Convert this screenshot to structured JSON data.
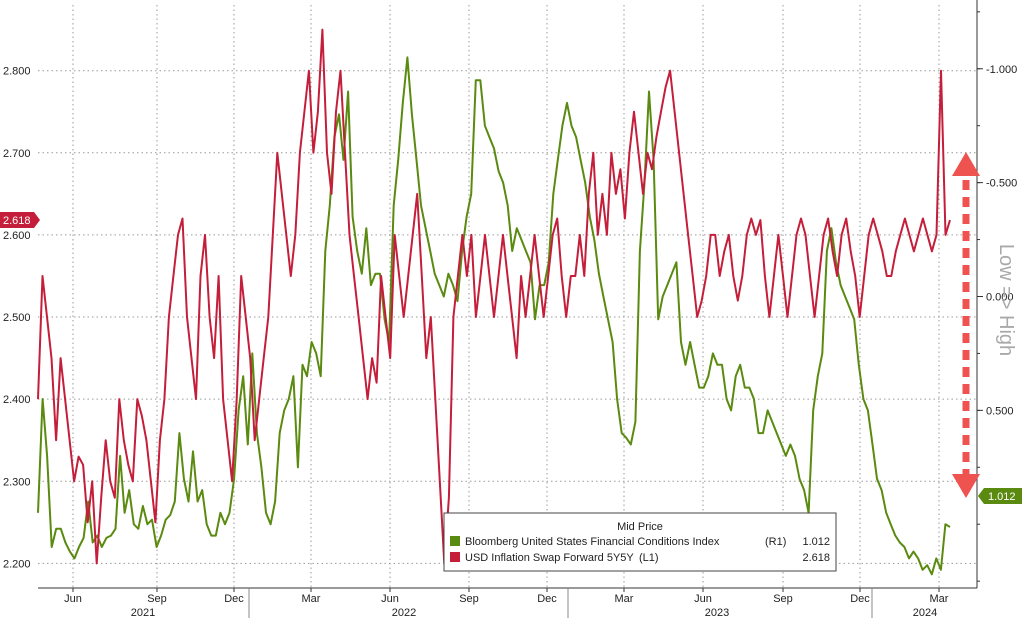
{
  "chart_data": {
    "type": "line",
    "legend_title": "Mid Price",
    "legend_position": "bottom-right",
    "x_month_labels": [
      "Jun",
      "Sep",
      "Dec",
      "Mar",
      "Jun",
      "Sep",
      "Dec",
      "Mar",
      "Jun",
      "Sep",
      "Dec",
      "Mar"
    ],
    "x_year_labels": [
      "2021",
      "2022",
      "2023",
      "2024"
    ],
    "left_axis": {
      "ticks": [
        "2.200",
        "2.300",
        "2.400",
        "2.500",
        "2.600",
        "2.700",
        "2.800"
      ],
      "ylim": [
        2.17,
        2.88
      ]
    },
    "right_axis": {
      "ticks": [
        "-1.000",
        "-0.500",
        "0.000",
        "0.500"
      ],
      "ylim": [
        1.28,
        -1.28
      ],
      "inverted": true,
      "label": "Low => High"
    },
    "series": [
      {
        "name": "Bloomberg United States Financial Conditions Index",
        "axis": "R1",
        "color": "#5a8a0f",
        "last_value": "1.012",
        "values": [
          0.95,
          0.45,
          0.7,
          1.1,
          1.02,
          1.02,
          1.08,
          1.12,
          1.15,
          1.1,
          1.06,
          0.9,
          1.08,
          1.05,
          1.1,
          1.06,
          1.05,
          1.02,
          0.7,
          0.95,
          0.85,
          1.0,
          1.02,
          0.92,
          1.0,
          0.98,
          1.1,
          1.05,
          0.98,
          0.96,
          0.9,
          0.6,
          0.8,
          0.9,
          0.68,
          0.9,
          0.85,
          1.0,
          1.05,
          1.05,
          0.95,
          1.0,
          0.95,
          0.8,
          0.5,
          0.35,
          0.65,
          0.25,
          0.6,
          0.75,
          0.95,
          1.0,
          0.9,
          0.6,
          0.5,
          0.45,
          0.35,
          0.75,
          0.3,
          0.35,
          0.2,
          0.25,
          0.35,
          -0.2,
          -0.4,
          -0.7,
          -0.8,
          -0.6,
          -0.9,
          -0.35,
          -0.2,
          -0.1,
          -0.3,
          -0.05,
          -0.1,
          -0.1,
          0.1,
          0.2,
          -0.4,
          -0.6,
          -0.85,
          -1.05,
          -0.8,
          -0.6,
          -0.4,
          -0.3,
          -0.2,
          -0.1,
          -0.05,
          0.0,
          -0.1,
          -0.05,
          0.02,
          -0.2,
          -0.35,
          -0.45,
          -0.95,
          -0.95,
          -0.75,
          -0.7,
          -0.65,
          -0.55,
          -0.5,
          -0.4,
          -0.2,
          -0.3,
          -0.25,
          -0.2,
          -0.15,
          0.1,
          -0.05,
          -0.05,
          -0.15,
          -0.45,
          -0.6,
          -0.75,
          -0.85,
          -0.75,
          -0.7,
          -0.6,
          -0.5,
          -0.35,
          -0.25,
          -0.1,
          0.0,
          0.1,
          0.2,
          0.45,
          0.6,
          0.62,
          0.65,
          0.55,
          -0.2,
          -0.5,
          -0.9,
          -0.6,
          0.1,
          0.0,
          -0.05,
          -0.1,
          -0.15,
          0.2,
          0.3,
          0.2,
          0.3,
          0.4,
          0.4,
          0.35,
          0.25,
          0.3,
          0.3,
          0.45,
          0.5,
          0.35,
          0.3,
          0.4,
          0.4,
          0.45,
          0.6,
          0.6,
          0.5,
          0.55,
          0.6,
          0.65,
          0.7,
          0.65,
          0.7,
          0.8,
          0.85,
          0.95,
          0.5,
          0.35,
          0.25,
          -0.2,
          -0.3,
          -0.15,
          -0.05,
          0.0,
          0.05,
          0.1,
          0.3,
          0.45,
          0.5,
          0.65,
          0.8,
          0.85,
          0.95,
          1.0,
          1.05,
          1.08,
          1.1,
          1.15,
          1.12,
          1.15,
          1.2,
          1.18,
          1.22,
          1.15,
          1.2,
          1.0,
          1.012
        ]
      },
      {
        "name": "USD Inflation Swap Forward 5Y5Y",
        "axis": "L1",
        "color": "#c41e3a",
        "last_value": "2.618",
        "values": [
          2.4,
          2.55,
          2.5,
          2.45,
          2.35,
          2.45,
          2.4,
          2.35,
          2.3,
          2.33,
          2.32,
          2.25,
          2.3,
          2.2,
          2.28,
          2.35,
          2.3,
          2.28,
          2.4,
          2.35,
          2.32,
          2.3,
          2.4,
          2.38,
          2.35,
          2.3,
          2.25,
          2.35,
          2.4,
          2.5,
          2.55,
          2.6,
          2.62,
          2.5,
          2.45,
          2.4,
          2.55,
          2.6,
          2.5,
          2.45,
          2.55,
          2.4,
          2.35,
          2.3,
          2.4,
          2.55,
          2.5,
          2.45,
          2.35,
          2.4,
          2.45,
          2.5,
          2.6,
          2.7,
          2.65,
          2.6,
          2.55,
          2.6,
          2.7,
          2.75,
          2.8,
          2.7,
          2.75,
          2.85,
          2.7,
          2.65,
          2.75,
          2.8,
          2.7,
          2.6,
          2.55,
          2.5,
          2.45,
          2.4,
          2.45,
          2.42,
          2.55,
          2.5,
          2.45,
          2.6,
          2.55,
          2.5,
          2.55,
          2.6,
          2.65,
          2.55,
          2.45,
          2.5,
          2.4,
          2.3,
          2.2,
          2.28,
          2.5,
          2.55,
          2.6,
          2.55,
          2.6,
          2.5,
          2.55,
          2.6,
          2.55,
          2.5,
          2.55,
          2.6,
          2.55,
          2.5,
          2.45,
          2.55,
          2.5,
          2.55,
          2.6,
          2.55,
          2.5,
          2.55,
          2.6,
          2.62,
          2.55,
          2.5,
          2.55,
          2.55,
          2.6,
          2.55,
          2.65,
          2.7,
          2.6,
          2.65,
          2.6,
          2.7,
          2.65,
          2.68,
          2.62,
          2.7,
          2.75,
          2.7,
          2.65,
          2.7,
          2.68,
          2.72,
          2.75,
          2.78,
          2.8,
          2.75,
          2.7,
          2.65,
          2.6,
          2.55,
          2.5,
          2.52,
          2.55,
          2.6,
          2.6,
          2.55,
          2.58,
          2.6,
          2.55,
          2.52,
          2.55,
          2.6,
          2.62,
          2.6,
          2.618,
          2.55,
          2.5,
          2.55,
          2.6,
          2.55,
          2.5,
          2.55,
          2.6,
          2.62,
          2.6,
          2.55,
          2.5,
          2.55,
          2.6,
          2.62,
          2.58,
          2.55,
          2.6,
          2.62,
          2.58,
          2.55,
          2.5,
          2.55,
          2.6,
          2.62,
          2.6,
          2.58,
          2.55,
          2.55,
          2.58,
          2.6,
          2.62,
          2.6,
          2.58,
          2.6,
          2.62,
          2.6,
          2.58,
          2.6,
          2.8,
          2.6,
          2.618
        ]
      }
    ]
  },
  "legend": {
    "title": "Mid Price",
    "items": [
      {
        "name": "Bloomberg United States Financial Conditions Index",
        "axis_tag": "(R1)",
        "value": "1.012"
      },
      {
        "name": "USD Inflation Swap Forward 5Y5Y",
        "axis_tag": "(L1)",
        "value": "2.618"
      }
    ]
  },
  "badges": {
    "left_value": "2.618",
    "right_value": "1.012"
  },
  "right_axis_label": "Low => High",
  "colors": {
    "green": "#5a8a0f",
    "red": "#c41e3a",
    "arrow": "#ef5350"
  }
}
